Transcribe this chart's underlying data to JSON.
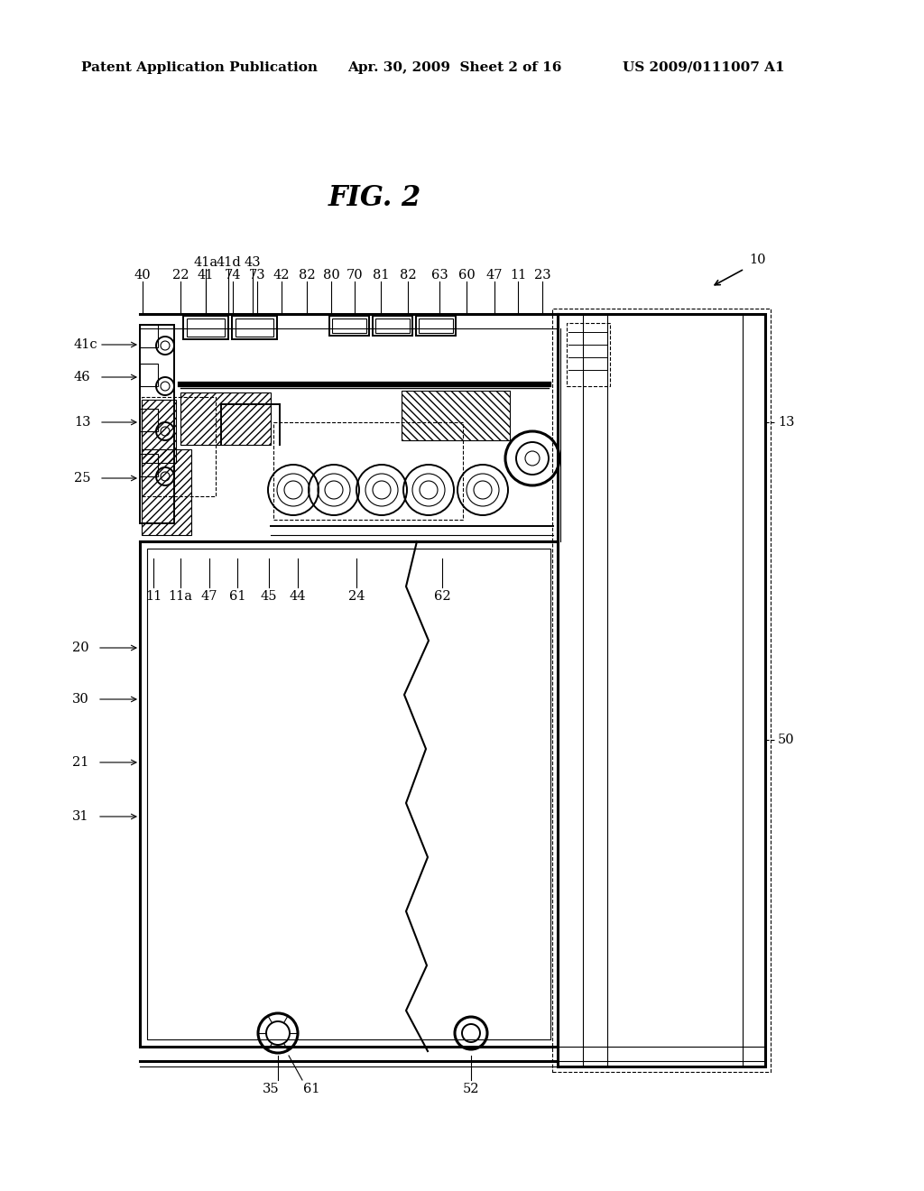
{
  "bg_color": "#ffffff",
  "header_left": "Patent Application Publication",
  "header_center": "Apr. 30, 2009  Sheet 2 of 16",
  "header_right": "US 2009/0111007 A1",
  "fig_title": "FIG. 2",
  "fig_ref": "10"
}
